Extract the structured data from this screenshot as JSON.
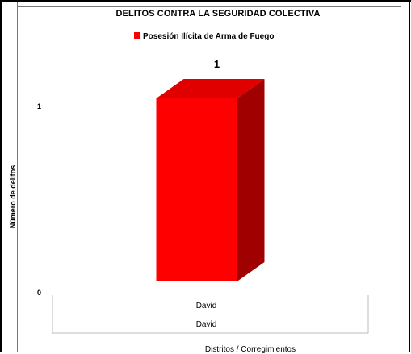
{
  "chart_data": {
    "type": "bar",
    "title": "DELITOS CONTRA LA SEGURIDAD COLECTIVA",
    "xlabel": "Distritos / Corregimientos",
    "ylabel": "Número de delitos",
    "categories": [
      "David"
    ],
    "category_sublabels": [
      "David"
    ],
    "series": [
      {
        "name": "Posesión Ilícita de Arma de Fuego",
        "values": [
          1
        ],
        "color": "#ff0000"
      }
    ],
    "ylim": [
      0,
      1
    ],
    "yticks": [
      "0",
      "1"
    ],
    "data_labels": [
      "1"
    ],
    "legend_position": "top",
    "grid": false,
    "style": "3d-column"
  }
}
